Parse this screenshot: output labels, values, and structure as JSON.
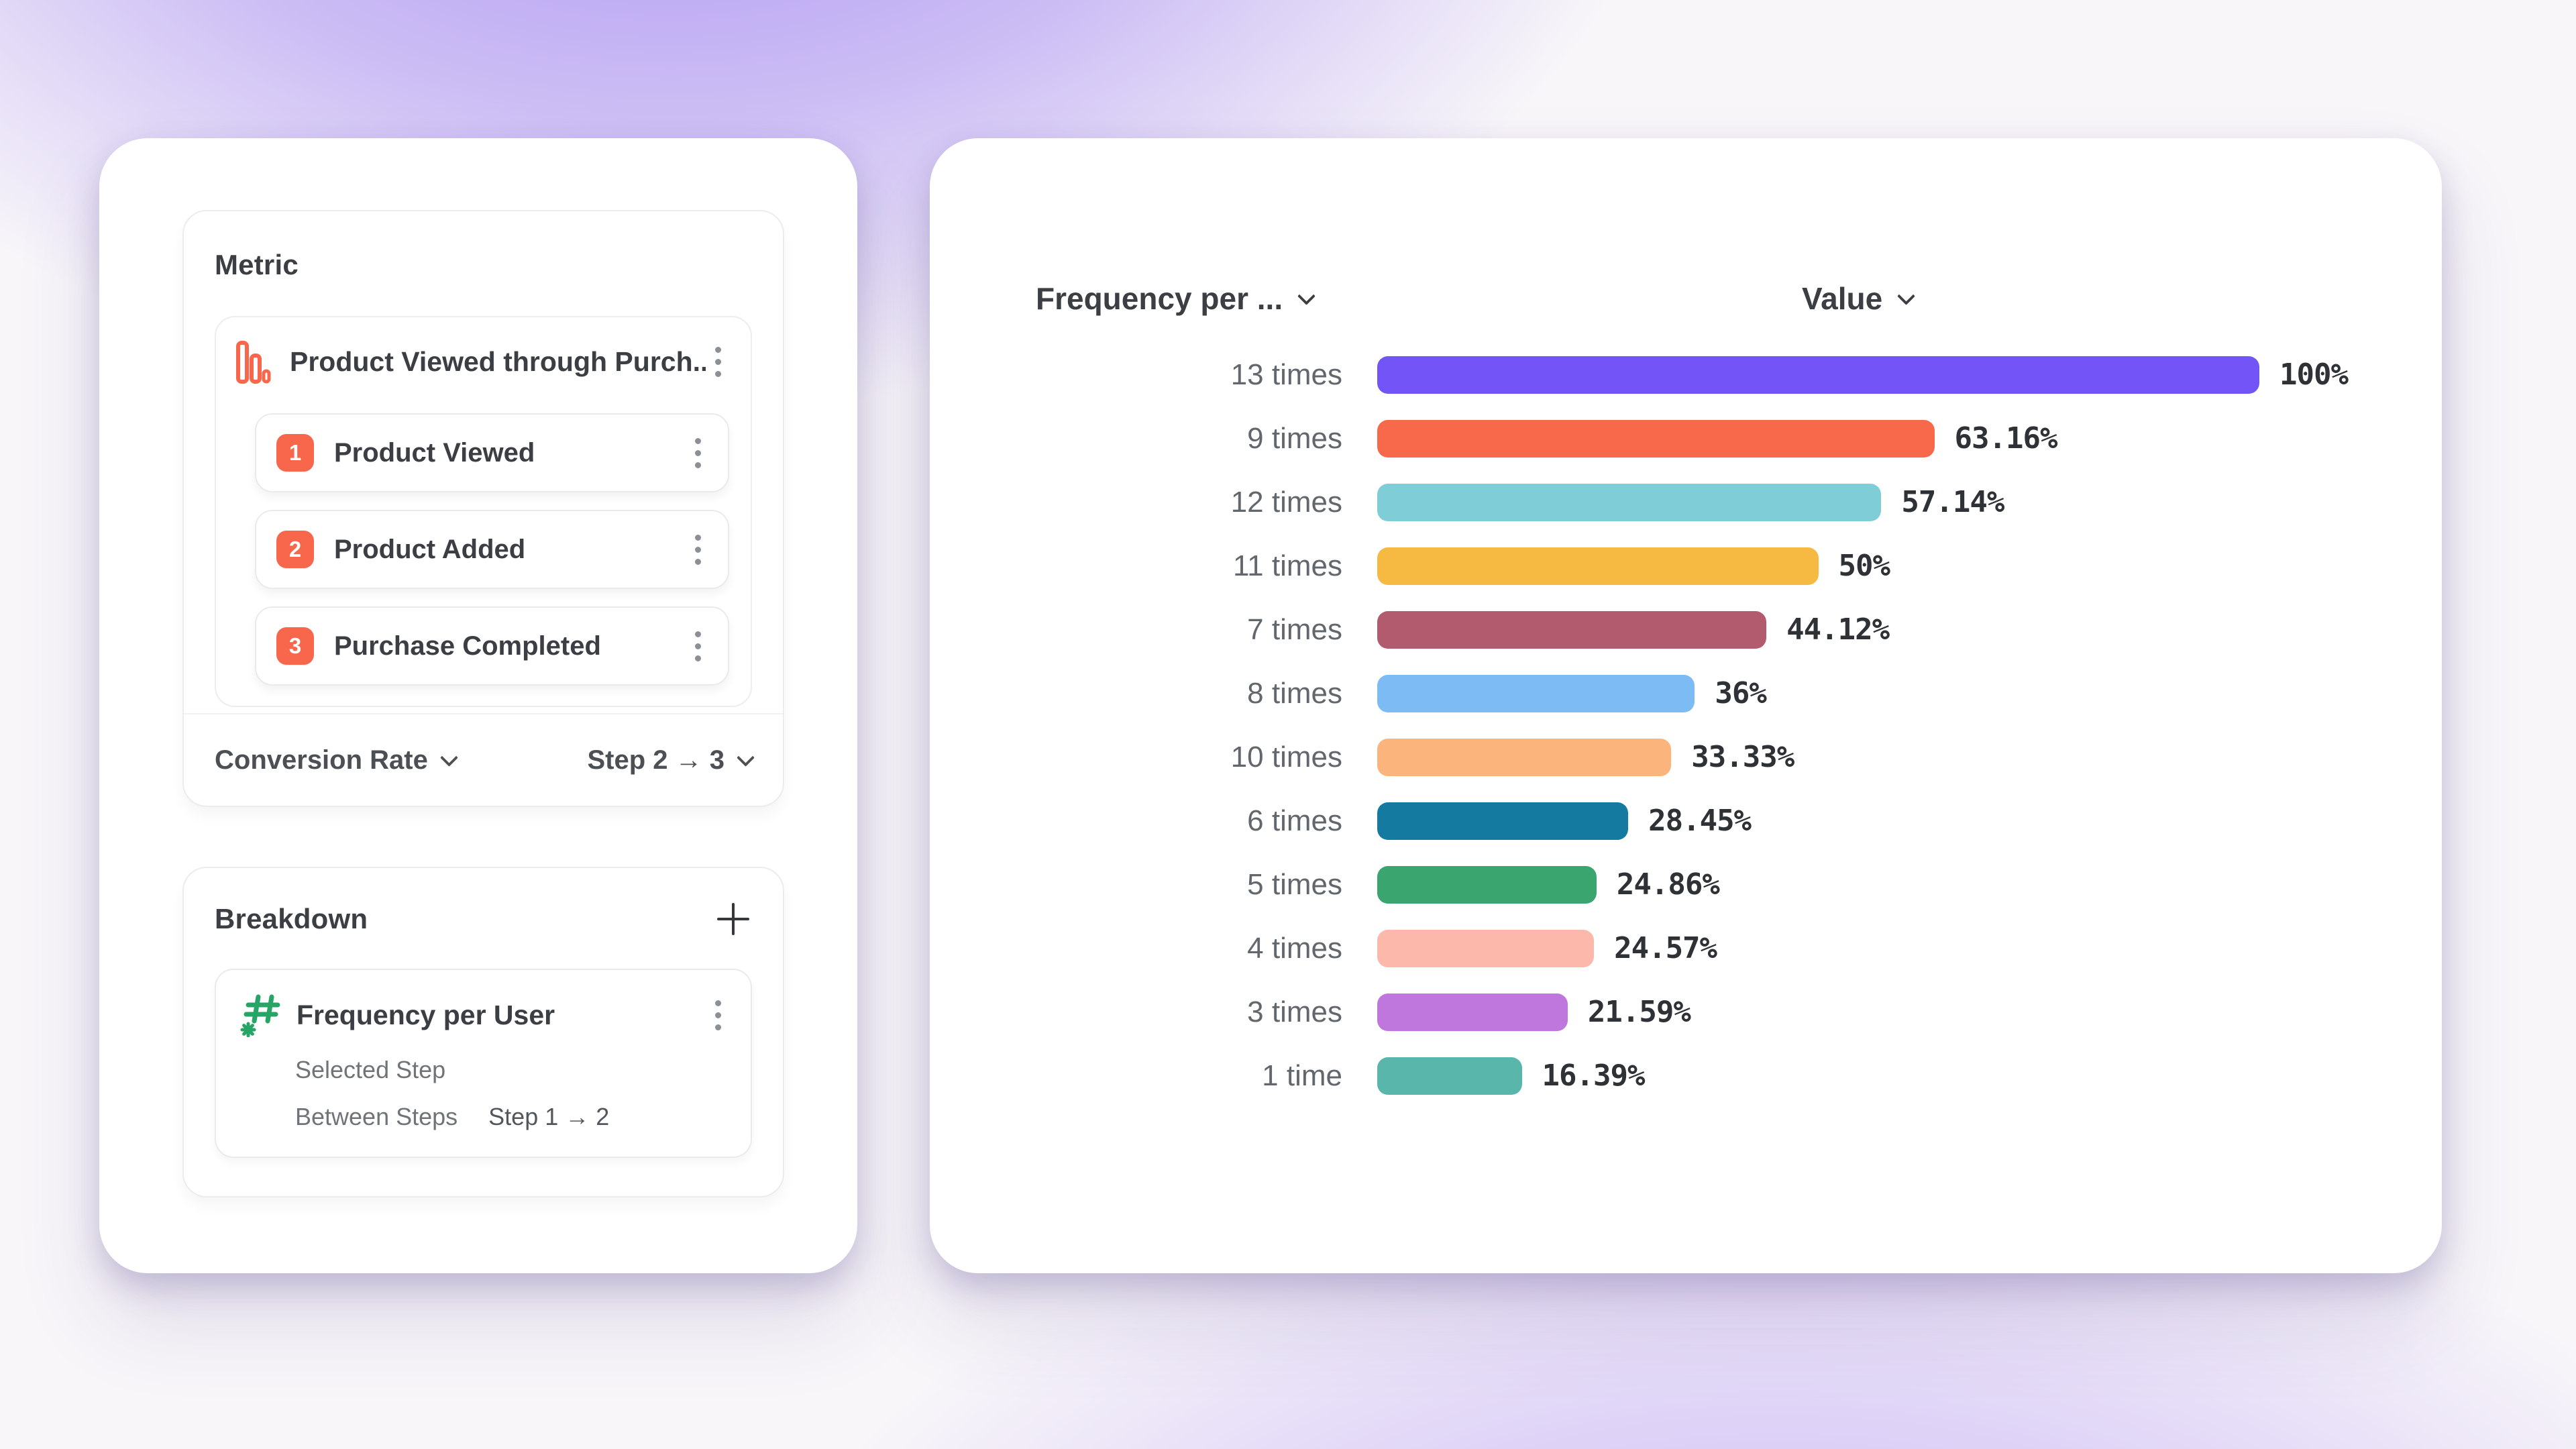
{
  "page": {
    "background_base": "#f8f6f9",
    "top_glow_color": "#764eec",
    "bottom_glow_color": "#8e66f0"
  },
  "metric_panel": {
    "title": "Metric",
    "accent_color": "#f8674b",
    "funnel": {
      "icon": "bar-chart-icon",
      "name": "Product Viewed through Purch...",
      "steps": [
        {
          "number": "1",
          "label": "Product Viewed"
        },
        {
          "number": "2",
          "label": "Product Added"
        },
        {
          "number": "3",
          "label": "Purchase Completed"
        }
      ]
    },
    "footer": {
      "measure": "Conversion Rate",
      "step_range": "Step 2 → 3"
    }
  },
  "breakdown_panel": {
    "title": "Breakdown",
    "add_button": "+",
    "item": {
      "icon": "hash-icon",
      "icon_color": "#27a567",
      "name": "Frequency per User",
      "selected_step_label": "Selected Step",
      "between_steps_label": "Between Steps",
      "between_steps_value": "Step 1 → 2"
    }
  },
  "chart": {
    "frequency_header": "Frequency per ...",
    "value_header": "Value",
    "rows": [
      {
        "label": "13 times",
        "value_pct": 100,
        "display": "100%",
        "color": "#7355f7"
      },
      {
        "label": "9 times",
        "value_pct": 63.16,
        "display": "63.16%",
        "color": "#f8684b"
      },
      {
        "label": "12 times",
        "value_pct": 57.14,
        "display": "57.14%",
        "color": "#7fcdd6"
      },
      {
        "label": "11 times",
        "value_pct": 50,
        "display": "50%",
        "color": "#f6ba43"
      },
      {
        "label": "7 times",
        "value_pct": 44.12,
        "display": "44.12%",
        "color": "#b25a6e"
      },
      {
        "label": "8 times",
        "value_pct": 36,
        "display": "36%",
        "color": "#7cbbf4"
      },
      {
        "label": "10 times",
        "value_pct": 33.33,
        "display": "33.33%",
        "color": "#fbb47c"
      },
      {
        "label": "6 times",
        "value_pct": 28.45,
        "display": "28.45%",
        "color": "#147a9f"
      },
      {
        "label": "5 times",
        "value_pct": 24.86,
        "display": "24.86%",
        "color": "#3aa56f"
      },
      {
        "label": "4 times",
        "value_pct": 24.57,
        "display": "24.57%",
        "color": "#fcb8ab"
      },
      {
        "label": "3 times",
        "value_pct": 21.59,
        "display": "21.59%",
        "color": "#c077dd"
      },
      {
        "label": "1 time",
        "value_pct": 16.39,
        "display": "16.39%",
        "color": "#58b6ab"
      }
    ]
  },
  "chart_data": {
    "type": "bar",
    "orientation": "horizontal",
    "title": "",
    "xlabel": "Value",
    "ylabel": "Frequency per ...",
    "xlim": [
      0,
      100
    ],
    "grid": false,
    "legend": false,
    "categories": [
      "13 times",
      "9 times",
      "12 times",
      "11 times",
      "7 times",
      "8 times",
      "10 times",
      "6 times",
      "5 times",
      "4 times",
      "3 times",
      "1 time"
    ],
    "values": [
      100,
      63.16,
      57.14,
      50,
      44.12,
      36,
      33.33,
      28.45,
      24.86,
      24.57,
      21.59,
      16.39
    ],
    "value_labels": [
      "100%",
      "63.16%",
      "57.14%",
      "50%",
      "44.12%",
      "36%",
      "33.33%",
      "28.45%",
      "24.86%",
      "24.57%",
      "21.59%",
      "16.39%"
    ],
    "colors": [
      "#7355f7",
      "#f8684b",
      "#7fcdd6",
      "#f6ba43",
      "#b25a6e",
      "#7cbbf4",
      "#fbb47c",
      "#147a9f",
      "#3aa56f",
      "#fcb8ab",
      "#c077dd",
      "#58b6ab"
    ]
  }
}
